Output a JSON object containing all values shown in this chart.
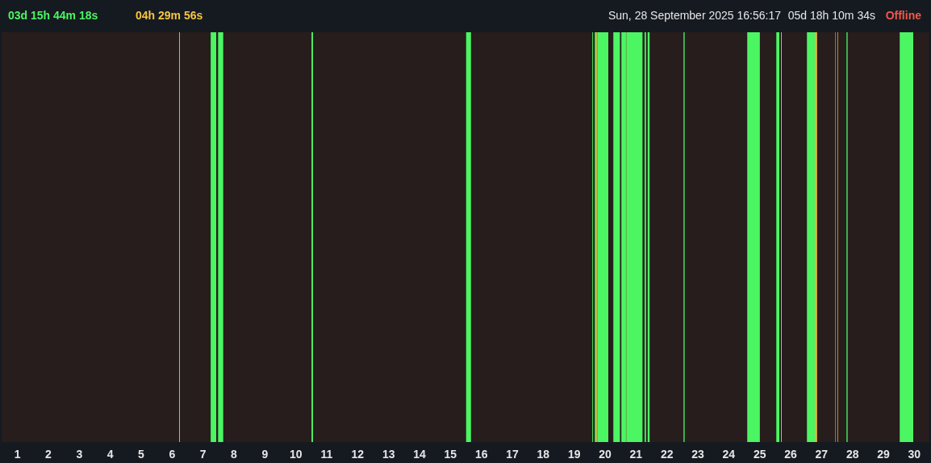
{
  "chart_data": {
    "type": "bar",
    "orientation": "horizontal",
    "stacked": true,
    "tick_labels": "x",
    "annotations": [
      "03d 15h 44m 18s",
      "04h 29m 56s",
      "Sun, 28 September 2025 16:56:17",
      "05d 18h 10m 34s",
      "Offline"
    ],
    "categories": [
      null
    ],
    "xlim": [
      0,
      30
    ],
    "xticks": [
      {
        "value": 0.5,
        "label": "1"
      },
      {
        "value": 1.5,
        "label": "2"
      },
      {
        "value": 2.5,
        "label": "3"
      },
      {
        "value": 3.5,
        "label": "4"
      },
      {
        "value": 4.5,
        "label": "5"
      },
      {
        "value": 5.5,
        "label": "6"
      },
      {
        "value": 6.5,
        "label": "7"
      },
      {
        "value": 7.5,
        "label": "8"
      },
      {
        "value": 8.5,
        "label": "9"
      },
      {
        "value": 9.5,
        "label": "10"
      },
      {
        "value": 10.5,
        "label": "11"
      },
      {
        "value": 11.5,
        "label": "12"
      },
      {
        "value": 12.5,
        "label": "13"
      },
      {
        "value": 13.5,
        "label": "14"
      },
      {
        "value": 14.5,
        "label": "15"
      },
      {
        "value": 15.5,
        "label": "16"
      },
      {
        "value": 16.5,
        "label": "17"
      },
      {
        "value": 17.5,
        "label": "18"
      },
      {
        "value": 18.5,
        "label": "19"
      },
      {
        "value": 19.5,
        "label": "20"
      },
      {
        "value": 20.5,
        "label": "21"
      },
      {
        "value": 21.5,
        "label": "22"
      },
      {
        "value": 22.5,
        "label": "23"
      },
      {
        "value": 23.5,
        "label": "24"
      },
      {
        "value": 24.5,
        "label": "25"
      },
      {
        "value": 25.5,
        "label": "26"
      },
      {
        "value": 26.5,
        "label": "27"
      },
      {
        "value": 27.5,
        "label": "28"
      },
      {
        "value": 28.5,
        "label": "29"
      },
      {
        "value": 29.5,
        "label": "30"
      }
    ],
    "series": [
      {
        "color": "#261d1c",
        "values": [
          5.74
        ]
      },
      {
        "color": "#4cf562",
        "values": [
          0.03
        ]
      },
      {
        "color": "#261d1c",
        "values": [
          0.99
        ]
      },
      {
        "color": "#4cf562",
        "values": [
          0.18
        ]
      },
      {
        "color": "#261d1c",
        "values": [
          0.06
        ]
      },
      {
        "color": "#4cf562",
        "values": [
          0.17
        ]
      },
      {
        "color": "#261d1c",
        "values": [
          2.85
        ]
      },
      {
        "color": "#4cf562",
        "values": [
          0.05
        ]
      },
      {
        "color": "#261d1c",
        "values": [
          4.95
        ]
      },
      {
        "color": "#4cf562",
        "values": [
          0.16
        ]
      },
      {
        "color": "#261d1c",
        "values": [
          3.92
        ]
      },
      {
        "color": "#4cf562",
        "values": [
          0.03
        ]
      },
      {
        "color": "#261d1c",
        "values": [
          0.05
        ]
      },
      {
        "color": "#4cf562",
        "values": [
          0.05
        ]
      },
      {
        "color": "#f5c542",
        "values": [
          0.03
        ]
      },
      {
        "color": "#4cf562",
        "values": [
          0.36
        ]
      },
      {
        "color": "#261d1c",
        "values": [
          0.16
        ]
      },
      {
        "color": "#4cf562",
        "values": [
          0.22
        ]
      },
      {
        "color": "#261d1c",
        "values": [
          0.04
        ]
      },
      {
        "color": "#4cf562",
        "values": [
          0.13
        ]
      },
      {
        "color": "#f5c542",
        "values": [
          0.03
        ]
      },
      {
        "color": "#4cf562",
        "values": [
          0.53
        ]
      },
      {
        "color": "#261d1c",
        "values": [
          0.06
        ]
      },
      {
        "color": "#4cf562",
        "values": [
          0.05
        ]
      },
      {
        "color": "#261d1c",
        "values": [
          0.05
        ]
      },
      {
        "color": "#4cf562",
        "values": [
          0.07
        ]
      },
      {
        "color": "#261d1c",
        "values": [
          1.09
        ]
      },
      {
        "color": "#4cf562",
        "values": [
          0.04
        ]
      },
      {
        "color": "#261d1c",
        "values": [
          2.02
        ]
      },
      {
        "color": "#4cf562",
        "values": [
          0.41
        ]
      },
      {
        "color": "#261d1c",
        "values": [
          0.53
        ]
      },
      {
        "color": "#4cf562",
        "values": [
          0.1
        ]
      },
      {
        "color": "#261d1c",
        "values": [
          0.05
        ]
      },
      {
        "color": "#4cf562",
        "values": [
          0.03
        ]
      },
      {
        "color": "#261d1c",
        "values": [
          0.81
        ]
      },
      {
        "color": "#4cf562",
        "values": [
          0.26
        ]
      },
      {
        "color": "#f5c542",
        "values": [
          0.07
        ]
      },
      {
        "color": "#261d1c",
        "values": [
          0.59
        ]
      },
      {
        "color": "#f5c542",
        "values": [
          0.02
        ]
      },
      {
        "color": "#261d1c",
        "values": [
          0.05
        ]
      },
      {
        "color": "#f5c542",
        "values": [
          0.02
        ]
      },
      {
        "color": "#261d1c",
        "values": [
          0.27
        ]
      },
      {
        "color": "#4cf562",
        "values": [
          0.04
        ]
      },
      {
        "color": "#261d1c",
        "values": [
          1.68
        ]
      },
      {
        "color": "#4cf562",
        "values": [
          0.44
        ]
      },
      {
        "color": "#261d1c",
        "values": [
          0.52
        ]
      }
    ]
  }
}
